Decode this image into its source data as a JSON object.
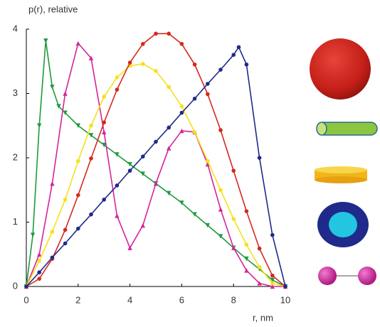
{
  "chart_data": {
    "type": "line",
    "title": "p(r), relative",
    "x_label": "r, nm",
    "xlim": [
      0,
      10
    ],
    "ylim": [
      0,
      4
    ],
    "xticks": [
      0,
      2,
      4,
      6,
      8,
      10
    ],
    "yticks": [
      0,
      1,
      2,
      3,
      4
    ],
    "series": [
      {
        "color": "#1f9a3c",
        "marker": "triangle-down",
        "x": [
          0,
          0.25,
          0.5,
          0.75,
          1,
          1.25,
          1.5,
          2,
          2.5,
          3,
          3.5,
          4,
          4.5,
          5,
          5.5,
          6,
          6.5,
          7,
          7.5,
          8,
          8.5,
          9,
          9.5,
          10
        ],
        "values": [
          0,
          0.8,
          2.5,
          3.82,
          3.1,
          2.8,
          2.7,
          2.5,
          2.35,
          2.2,
          2.05,
          1.9,
          1.75,
          1.6,
          1.45,
          1.3,
          1.12,
          0.95,
          0.78,
          0.6,
          0.43,
          0.27,
          0.1,
          0
        ]
      },
      {
        "color": "#d4259a",
        "marker": "triangle-up",
        "x": [
          0,
          0.5,
          1,
          1.5,
          2,
          2.5,
          3,
          3.5,
          4,
          4.5,
          5,
          5.5,
          6,
          6.5,
          7,
          7.5,
          8,
          8.5,
          9,
          9.5,
          10
        ],
        "values": [
          0,
          0.5,
          1.6,
          3.0,
          3.78,
          3.55,
          2.4,
          1.1,
          0.6,
          0.95,
          1.6,
          2.15,
          2.42,
          2.4,
          1.9,
          1.2,
          0.6,
          0.25,
          0.05,
          0,
          0
        ]
      },
      {
        "color": "#f5e11a",
        "marker": "circle",
        "x": [
          0,
          0.5,
          1,
          1.5,
          2,
          2.5,
          3,
          3.5,
          4,
          4.5,
          5,
          5.5,
          6,
          6.5,
          7,
          7.5,
          8,
          8.5,
          9,
          9.5,
          10
        ],
        "values": [
          0,
          0.4,
          0.85,
          1.35,
          1.95,
          2.5,
          2.95,
          3.25,
          3.43,
          3.46,
          3.35,
          3.1,
          2.8,
          2.4,
          1.95,
          1.5,
          1.05,
          0.65,
          0.3,
          0.05,
          0
        ]
      },
      {
        "color": "#d42a1e",
        "marker": "circle",
        "x": [
          0,
          0.5,
          1,
          1.5,
          2,
          2.5,
          3,
          3.5,
          4,
          4.5,
          5,
          5.5,
          6,
          6.5,
          7,
          7.5,
          8,
          8.5,
          9,
          9.5,
          10
        ],
        "values": [
          0,
          0.12,
          0.43,
          0.88,
          1.42,
          1.99,
          2.55,
          3.06,
          3.48,
          3.77,
          3.93,
          3.93,
          3.77,
          3.45,
          2.99,
          2.43,
          1.8,
          1.17,
          0.59,
          0.17,
          0
        ]
      },
      {
        "color": "#1f2a8a",
        "marker": "circle",
        "x": [
          0,
          0.5,
          1,
          1.5,
          2,
          2.5,
          3,
          3.5,
          4,
          4.5,
          5,
          5.5,
          6,
          6.5,
          7,
          7.5,
          8,
          8.2,
          8.5,
          9,
          9.5,
          10
        ],
        "values": [
          0,
          0.22,
          0.45,
          0.67,
          0.9,
          1.12,
          1.35,
          1.57,
          1.8,
          2.02,
          2.25,
          2.47,
          2.7,
          2.92,
          3.15,
          3.37,
          3.6,
          3.72,
          3.45,
          2.0,
          0.8,
          0
        ]
      }
    ]
  }
}
